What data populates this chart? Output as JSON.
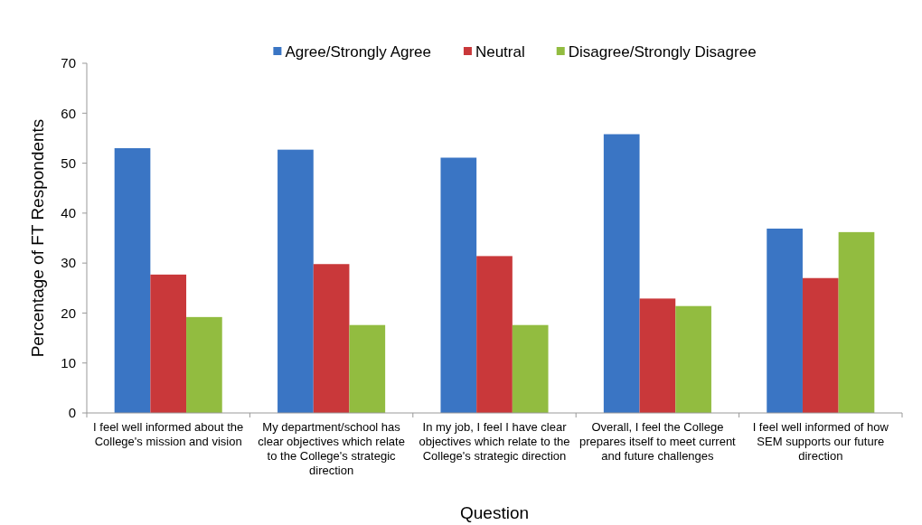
{
  "chart_data": {
    "type": "bar",
    "xlabel": "Question",
    "ylabel": "Percentage of FT Respondents",
    "categories": [
      "I feel well informed about the College's mission and vision",
      "My department/school has clear objectives which relate to the College's strategic direction",
      "In my job, I feel I have clear objectives which relate to the College's strategic direction",
      "Overall, I feel the College prepares itself to meet current and future challenges",
      "I feel well informed of how SEM supports our future direction"
    ],
    "series": [
      {
        "name": "Agree/Strongly Agree",
        "color": "#3a75c4",
        "values": [
          53.0,
          52.7,
          51.1,
          55.8,
          36.9
        ]
      },
      {
        "name": "Neutral",
        "color": "#c9383a",
        "values": [
          27.7,
          29.8,
          31.4,
          22.9,
          27.0
        ]
      },
      {
        "name": "Disagree/Strongly Disagree",
        "color": "#92bc40",
        "values": [
          19.2,
          17.6,
          17.6,
          21.4,
          36.2
        ]
      }
    ],
    "ylim": [
      0,
      70
    ],
    "yticks": [
      0,
      10,
      20,
      30,
      40,
      50,
      60,
      70
    ],
    "grid": false,
    "legend": "top"
  }
}
